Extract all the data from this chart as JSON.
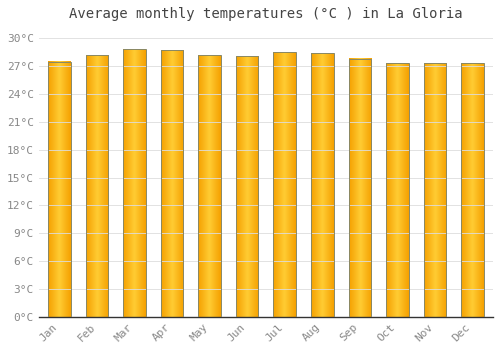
{
  "months": [
    "Jan",
    "Feb",
    "Mar",
    "Apr",
    "May",
    "Jun",
    "Jul",
    "Aug",
    "Sep",
    "Oct",
    "Nov",
    "Dec"
  ],
  "temperatures": [
    27.5,
    28.2,
    28.8,
    28.7,
    28.2,
    28.1,
    28.5,
    28.4,
    27.8,
    27.3,
    27.3,
    27.3
  ],
  "bar_color_center": "#FFCC33",
  "bar_color_edge": "#F5A000",
  "bar_border_color": "#888866",
  "background_color": "#FFFFFF",
  "plot_bg_color": "#FFFFFF",
  "grid_color": "#DDDDDD",
  "title": "Average monthly temperatures (°C ) in La Gloria",
  "title_fontsize": 10,
  "title_color": "#444444",
  "tick_label_color": "#888888",
  "tick_label_fontsize": 8,
  "ylim": [
    0,
    31
  ],
  "yticks": [
    0,
    3,
    6,
    9,
    12,
    15,
    18,
    21,
    24,
    27,
    30
  ],
  "ytick_labels": [
    "0°C",
    "3°C",
    "6°C",
    "9°C",
    "12°C",
    "15°C",
    "18°C",
    "21°C",
    "24°C",
    "27°C",
    "30°C"
  ],
  "bar_width": 0.6,
  "gradient_steps": 100
}
